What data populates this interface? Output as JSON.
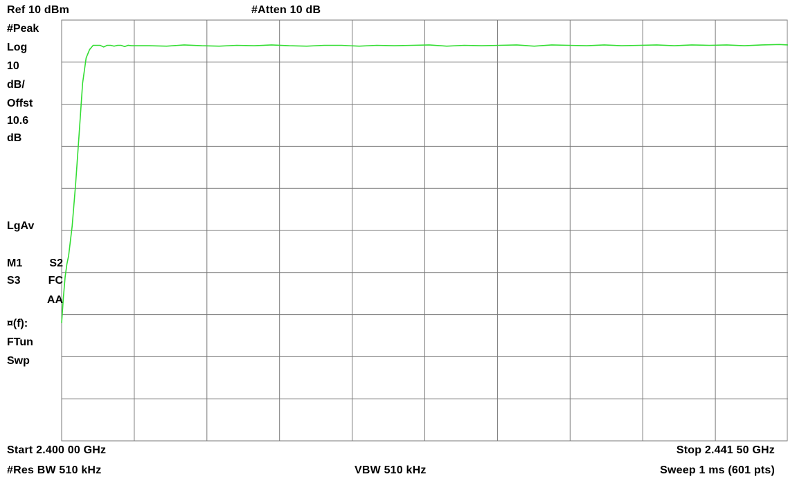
{
  "header": {
    "ref_level": "Ref 10 dBm",
    "attenuation": "#Atten 10 dB"
  },
  "side_panel": {
    "detector": "#Peak",
    "scale_type": "Log",
    "scale_value": "10",
    "scale_unit": "dB/",
    "offset_label": "Offst",
    "offset_value": "10.6",
    "offset_unit": "dB",
    "averaging": "LgAv",
    "marker_row_1a": "M1",
    "marker_row_1b": "S2",
    "marker_row_2a": "S3",
    "marker_row_2b": "FC",
    "marker_row_3": "AA",
    "function_label": "¤(f):",
    "function_value": "FTun",
    "sweep_label": "Swp"
  },
  "footer": {
    "start": "Start 2.400 00 GHz",
    "stop": "Stop 2.441 50 GHz",
    "res_bw": "#Res BW 510 kHz",
    "vbw": "VBW 510 kHz",
    "sweep": "Sweep 1 ms (601 pts)"
  },
  "colors": {
    "trace": "#33dd33",
    "grid": "#777777",
    "background": "#ffffff"
  },
  "chart_data": {
    "type": "line",
    "title": "",
    "xlabel": "",
    "ylabel": "",
    "x_unit": "GHz",
    "y_unit": "dBm",
    "xlim": [
      2.4,
      2.4415
    ],
    "ylim": [
      -90,
      10
    ],
    "grid": true,
    "grid_divisions": {
      "x": 10,
      "y": 10
    },
    "series": [
      {
        "x": [
          2.4,
          2.4001,
          2.4002,
          2.4003,
          2.4004,
          2.4006,
          2.4008,
          2.401,
          2.4012,
          2.4014,
          2.4016,
          2.4018,
          2.402,
          2.4022,
          2.4024,
          2.4026,
          2.4028,
          2.403,
          2.4032,
          2.4034,
          2.4036,
          2.4038,
          2.404,
          2.405,
          2.406,
          2.407,
          2.408,
          2.409,
          2.41,
          2.411,
          2.412,
          2.413,
          2.414,
          2.415,
          2.416,
          2.417,
          2.418,
          2.419,
          2.42,
          2.421,
          2.422,
          2.423,
          2.424,
          2.425,
          2.426,
          2.427,
          2.428,
          2.429,
          2.43,
          2.431,
          2.432,
          2.433,
          2.434,
          2.435,
          2.436,
          2.437,
          2.438,
          2.439,
          2.44,
          2.441,
          2.4415
        ],
        "y": [
          -62,
          -56,
          -51,
          -48,
          -46,
          -39,
          -29,
          -17,
          -5,
          1,
          3,
          4,
          4,
          4,
          3.6,
          4,
          4,
          3.8,
          4,
          4,
          3.7,
          4,
          3.9,
          3.9,
          3.8,
          4.1,
          3.9,
          3.8,
          4,
          3.9,
          4.1,
          3.9,
          3.8,
          4,
          4,
          3.8,
          4,
          3.9,
          4,
          4.1,
          3.8,
          4,
          3.9,
          4,
          4.1,
          3.8,
          4.1,
          4,
          3.9,
          4.1,
          3.9,
          4,
          4.1,
          3.9,
          4.1,
          4,
          4.1,
          3.9,
          4.1,
          4.2,
          4.1
        ]
      }
    ]
  }
}
